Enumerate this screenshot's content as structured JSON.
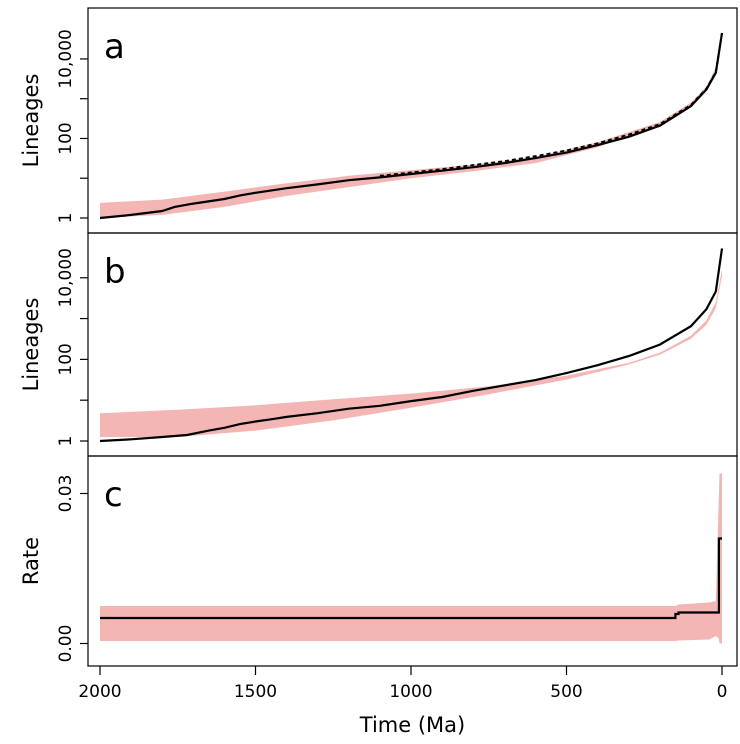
{
  "chart_data": [
    {
      "panel": "a",
      "type": "line",
      "ylabel": "Lineages",
      "y_scale": "log",
      "y_ticks": [
        1,
        10,
        100,
        1000,
        10000
      ],
      "y_tick_labels": [
        "1",
        "",
        "100",
        "",
        "10,000"
      ],
      "xlim": [
        2000,
        0
      ],
      "ylim": [
        1,
        60000
      ],
      "band_color": "#f4b6b4",
      "band": {
        "x": [
          2000,
          1800,
          1600,
          1400,
          1200,
          1000,
          800,
          600,
          400,
          200,
          100,
          50,
          10,
          0
        ],
        "low": [
          1,
          1.2,
          1.9,
          3.6,
          6,
          10,
          15,
          24,
          60,
          220,
          700,
          1800,
          8000,
          40000
        ],
        "high": [
          2.4,
          2.9,
          4.6,
          7.5,
          11.5,
          16,
          22,
          34,
          80,
          260,
          800,
          2000,
          9000,
          43000
        ]
      },
      "series": [
        {
          "style": "solid",
          "x": [
            2000,
            1900,
            1800,
            1760,
            1700,
            1600,
            1550,
            1500,
            1400,
            1300,
            1200,
            1100,
            1000,
            900,
            800,
            700,
            600,
            500,
            400,
            300,
            200,
            100,
            50,
            20,
            0
          ],
          "y": [
            1,
            1.2,
            1.5,
            1.9,
            2.3,
            3.0,
            3.7,
            4.3,
            5.6,
            7.0,
            8.9,
            10.5,
            12.8,
            15.5,
            19,
            24,
            32,
            44,
            68,
            110,
            210,
            650,
            1700,
            4500,
            45000
          ]
        },
        {
          "style": "dashed",
          "x": [
            1100,
            1000,
            900,
            800,
            700,
            600,
            500,
            400,
            300,
            200,
            100,
            50,
            20,
            0
          ],
          "y": [
            11.5,
            14,
            17,
            21.5,
            27,
            36,
            50,
            76,
            125,
            230,
            700,
            1800,
            4700,
            45000
          ]
        }
      ]
    },
    {
      "panel": "b",
      "type": "line",
      "ylabel": "Lineages",
      "y_scale": "log",
      "y_ticks": [
        1,
        10,
        100,
        1000,
        10000
      ],
      "y_tick_labels": [
        "1",
        "",
        "100",
        "",
        "10,000"
      ],
      "xlim": [
        2000,
        0
      ],
      "ylim": [
        1,
        60000
      ],
      "band_color": "#f4b6b4",
      "band": {
        "x": [
          2000,
          1750,
          1500,
          1250,
          1000,
          750,
          500,
          300,
          200,
          100,
          50,
          20,
          0
        ],
        "low": [
          1.25,
          1.25,
          1.8,
          3.2,
          6.5,
          14,
          32,
          75,
          130,
          320,
          700,
          1800,
          11000
        ],
        "high": [
          4.8,
          5.8,
          7.5,
          10.5,
          14.5,
          22,
          40,
          82,
          145,
          380,
          900,
          2500,
          16000
        ]
      },
      "series": [
        {
          "style": "solid",
          "x": [
            2000,
            1900,
            1800,
            1720,
            1650,
            1600,
            1550,
            1500,
            1450,
            1400,
            1300,
            1200,
            1100,
            1000,
            900,
            800,
            700,
            600,
            500,
            400,
            300,
            200,
            100,
            50,
            20,
            0
          ],
          "y": [
            1,
            1.1,
            1.25,
            1.4,
            1.8,
            2.1,
            2.6,
            3.0,
            3.4,
            3.9,
            4.8,
            6.2,
            7.3,
            9.5,
            12,
            17,
            23,
            31,
            46,
            72,
            120,
            230,
            650,
            1700,
            4600,
            52000
          ]
        }
      ]
    },
    {
      "panel": "c",
      "type": "line",
      "ylabel": "Rate",
      "y_scale": "linear",
      "y_ticks": [
        0,
        0.03
      ],
      "y_tick_labels": [
        "0.00",
        "0.03"
      ],
      "xlim": [
        2000,
        0
      ],
      "ylim": [
        -0.0025,
        0.0355
      ],
      "xlabel": "Time (Ma)",
      "x_ticks": [
        2000,
        1500,
        1000,
        500,
        0
      ],
      "x_tick_labels": [
        "2000",
        "1500",
        "1000",
        "500",
        "0"
      ],
      "band_color": "#f4b6b4",
      "band": {
        "x": [
          2000,
          150,
          140,
          40,
          20,
          10,
          8,
          5,
          0
        ],
        "low": [
          0.0005,
          0.0005,
          0.0006,
          0.0008,
          0.0015,
          0.001,
          0.0,
          0.0,
          0.0
        ],
        "high": [
          0.0075,
          0.0075,
          0.0078,
          0.0082,
          0.0085,
          0.03,
          0.034,
          0.034,
          0.034
        ]
      },
      "series": [
        {
          "style": "step",
          "x": [
            2000,
            150,
            150,
            140,
            140,
            10,
            10,
            0
          ],
          "y": [
            0.0051,
            0.0051,
            0.0059,
            0.0059,
            0.0062,
            0.0062,
            0.021,
            0.021
          ]
        }
      ]
    }
  ]
}
